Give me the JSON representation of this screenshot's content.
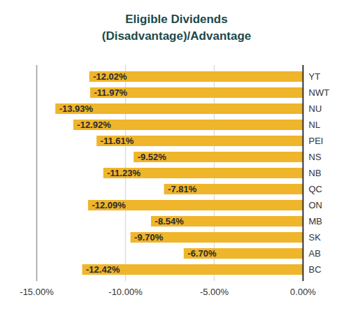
{
  "chart_data": {
    "type": "bar",
    "title": "Eligible Dividends",
    "subtitle": "(Disadvantage)/Advantage",
    "orientation": "horizontal",
    "categories": [
      "YT",
      "NWT",
      "NU",
      "NL",
      "PEI",
      "NS",
      "NB",
      "QC",
      "ON",
      "MB",
      "SK",
      "AB",
      "BC"
    ],
    "values": [
      -12.02,
      -11.97,
      -13.93,
      -12.92,
      -11.61,
      -9.52,
      -11.23,
      -7.81,
      -12.09,
      -8.54,
      -9.7,
      -6.7,
      -12.42
    ],
    "value_labels": [
      "-12.02%",
      "-11.97%",
      "-13.93%",
      "-12.92%",
      "-11.61%",
      "-9.52%",
      "-11.23%",
      "-7.81%",
      "-12.09%",
      "-8.54%",
      "-9.70%",
      "-6.70%",
      "-12.42%"
    ],
    "data_labels": true,
    "color": "#efb52b",
    "xlim": [
      -15,
      0
    ],
    "xticks": [
      {
        "value": -15,
        "label": "-15.00%"
      },
      {
        "value": -10,
        "label": "-10.00%"
      },
      {
        "value": -5,
        "label": "-5.00%"
      },
      {
        "value": 0,
        "label": "0.00%"
      }
    ],
    "grid": true
  }
}
